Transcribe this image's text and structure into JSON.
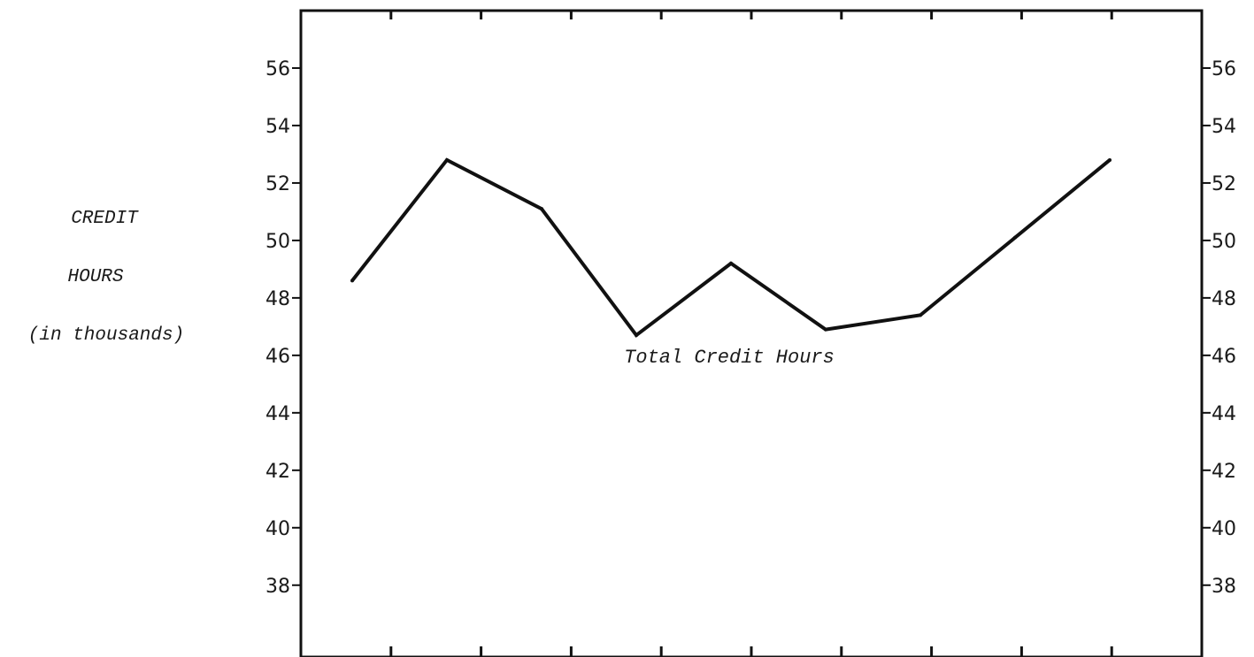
{
  "chart_data": {
    "type": "line",
    "ylabel_lines": [
      "CREDIT",
      "HOURS",
      "(in thousands)"
    ],
    "ylim": [
      35.5,
      58
    ],
    "y_ticks": [
      38,
      40,
      42,
      44,
      46,
      48,
      50,
      52,
      54,
      56
    ],
    "y_tick_labels": [
      "38",
      "40",
      "42",
      "44",
      "46",
      "48",
      "50",
      "52",
      "54",
      "56"
    ],
    "x_tick_count": 9,
    "grid": false,
    "series": [
      {
        "values": [
          48.6,
          52.8,
          51.1,
          46.7,
          49.2,
          46.9,
          47.4,
          50.1,
          52.8
        ]
      }
    ],
    "annotations": [
      {
        "text": "Total Credit Hours",
        "x_index": 4,
        "y": 46.0
      }
    ],
    "colors": {
      "line": "#111111",
      "axis": "#111111",
      "text": "#1a1a1a"
    }
  }
}
